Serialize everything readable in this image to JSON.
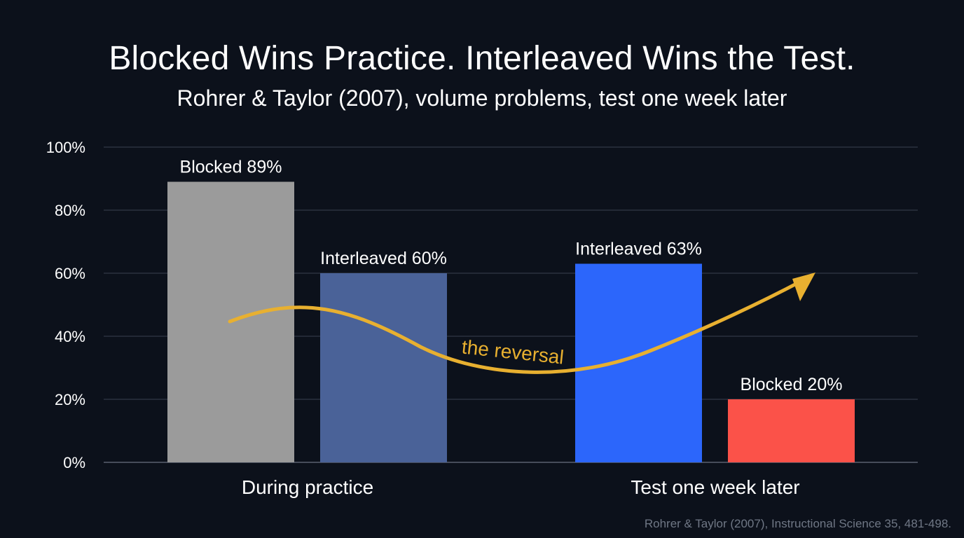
{
  "title": "Blocked Wins Practice. Interleaved Wins the Test.",
  "subtitle": "Rohrer & Taylor (2007), volume problems, test one week later",
  "source": "Rohrer & Taylor (2007), Instructional Science 35, 481-498.",
  "annotation": "the reversal",
  "colors": {
    "background": "#0c111b",
    "gridline": "#3a4150",
    "blocked_practice": "#9b9b9b",
    "interleaved_practice": "#4a6298",
    "interleaved_test": "#2c66fb",
    "blocked_test": "#fb5249",
    "arrow": "#e8b030"
  },
  "chart_data": {
    "type": "bar",
    "categories": [
      "During practice",
      "Test one week later"
    ],
    "bars": [
      {
        "category": "During practice",
        "condition": "Blocked",
        "value": 89,
        "label": "Blocked 89%",
        "color": "#9b9b9b"
      },
      {
        "category": "During practice",
        "condition": "Interleaved",
        "value": 60,
        "label": "Interleaved 60%",
        "color": "#4a6298"
      },
      {
        "category": "Test one week later",
        "condition": "Interleaved",
        "value": 63,
        "label": "Interleaved 63%",
        "color": "#2c66fb"
      },
      {
        "category": "Test one week later",
        "condition": "Blocked",
        "value": 20,
        "label": "Blocked 20%",
        "color": "#fb5249"
      }
    ],
    "yticks": [
      "0%",
      "20%",
      "40%",
      "60%",
      "80%",
      "100%"
    ],
    "ylim": [
      0,
      100
    ],
    "grid": true,
    "legend": "none",
    "annotation": "the reversal"
  }
}
